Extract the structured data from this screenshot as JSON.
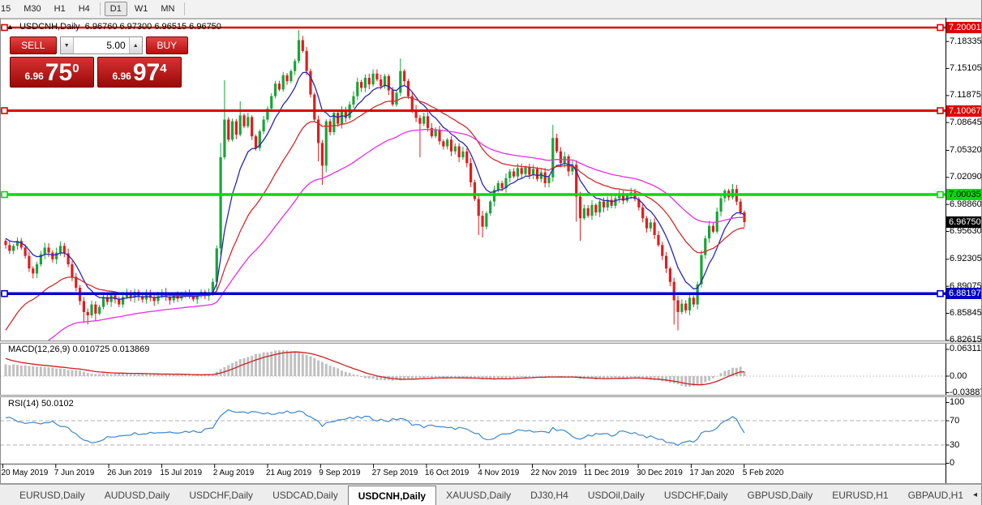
{
  "toolbar": {
    "timeframes": [
      "15",
      "M30",
      "H1",
      "H4",
      "D1",
      "W1",
      "MN"
    ],
    "active": "D1"
  },
  "chart": {
    "title": {
      "symbol": "USDCNH,Daily",
      "open": "6.96760",
      "high": "6.97300",
      "low": "6.96515",
      "close": "6.96750"
    },
    "trade": {
      "sell_label": "SELL",
      "buy_label": "BUY",
      "volume": "5.00",
      "sell_price_prefix": "6.96",
      "sell_price_main": "75",
      "sell_price_sup": "0",
      "buy_price_prefix": "6.96",
      "buy_price_main": "97",
      "buy_price_sup": "4"
    }
  },
  "chart_data": {
    "type": "candlestick",
    "symbol": "USDCNH",
    "timeframe": "Daily",
    "x_axis": {
      "labels": [
        "20 May 2019",
        "7 Jun 2019",
        "26 Jun 2019",
        "15 Jul 2019",
        "2 Aug 2019",
        "21 Aug 2019",
        "9 Sep 2019",
        "27 Sep 2019",
        "16 Oct 2019",
        "4 Nov 2019",
        "22 Nov 2019",
        "11 Dec 2019",
        "30 Dec 2019",
        "17 Jan 2020",
        "5 Feb 2020"
      ]
    },
    "y_axis": {
      "ticks": [
        "7.18335",
        "7.15105",
        "7.11875",
        "7.08645",
        "7.05320",
        "7.02090",
        "6.98860",
        "6.95630",
        "6.92305",
        "6.89075",
        "6.85845",
        "6.82615"
      ],
      "tick_values": [
        7.18335,
        7.15105,
        7.11875,
        7.08645,
        7.0532,
        7.0209,
        6.9886,
        6.9563,
        6.92305,
        6.89075,
        6.85845,
        6.82615
      ],
      "tags": [
        {
          "value": "7.20001",
          "price": 7.20001,
          "bg": "#e00000",
          "fg": "#ffffff"
        },
        {
          "value": "7.10067",
          "price": 7.10067,
          "bg": "#e00000",
          "fg": "#ffffff"
        },
        {
          "value": "7.00035",
          "price": 7.00035,
          "bg": "#00dd00",
          "fg": "#000000"
        },
        {
          "value": "6.96750",
          "price": 6.9675,
          "bg": "#000000",
          "fg": "#ffffff"
        },
        {
          "value": "6.88197",
          "price": 6.88197,
          "bg": "#0000cc",
          "fg": "#ffffff"
        }
      ]
    },
    "candles": {
      "first_open": 6.945,
      "closes": [
        6.94,
        6.933,
        6.939,
        6.945,
        6.937,
        6.927,
        6.912,
        6.906,
        6.917,
        6.929,
        6.937,
        6.931,
        6.923,
        6.931,
        6.939,
        6.93,
        6.917,
        6.902,
        6.889,
        6.873,
        6.86,
        6.856,
        6.869,
        6.858,
        6.866,
        6.878,
        6.872,
        6.88,
        6.875,
        6.869,
        6.878,
        6.883,
        6.877,
        6.884,
        6.879,
        6.875,
        6.881,
        6.877,
        6.873,
        6.879,
        6.883,
        6.878,
        6.874,
        6.88,
        6.876,
        6.879,
        6.883,
        6.879,
        6.875,
        6.881,
        6.884,
        6.879,
        6.883,
        6.896,
        6.936,
        7.045,
        7.09,
        7.066,
        7.088,
        7.072,
        7.095,
        7.082,
        7.093,
        7.07,
        7.056,
        7.076,
        7.09,
        7.103,
        7.118,
        7.133,
        7.126,
        7.143,
        7.136,
        7.148,
        7.16,
        7.185,
        7.172,
        7.148,
        7.12,
        7.09,
        7.062,
        7.035,
        7.088,
        7.075,
        7.098,
        7.085,
        7.102,
        7.092,
        7.108,
        7.118,
        7.135,
        7.128,
        7.14,
        7.132,
        7.145,
        7.138,
        7.13,
        7.142,
        7.125,
        7.108,
        7.122,
        7.148,
        7.136,
        7.118,
        7.102,
        7.092,
        7.085,
        7.094,
        7.08,
        7.07,
        7.078,
        7.064,
        7.058,
        7.066,
        7.052,
        7.058,
        7.045,
        7.052,
        7.038,
        7.015,
        6.995,
        6.975,
        6.962,
        6.978,
        6.992,
        7.006,
        7.014,
        7.008,
        7.02,
        7.028,
        7.022,
        7.032,
        7.025,
        7.033,
        7.024,
        7.031,
        7.019,
        7.027,
        7.014,
        7.021,
        7.068,
        7.052,
        7.038,
        7.046,
        7.028,
        7.036,
        6.998,
        6.972,
        6.984,
        6.975,
        6.988,
        6.979,
        6.992,
        6.985,
        6.994,
        6.987,
        6.996,
        7.002,
        6.993,
        6.999,
        7.003,
        6.995,
        6.985,
        6.972,
        6.96,
        6.967,
        6.952,
        6.94,
        6.927,
        6.912,
        6.896,
        6.874,
        6.86,
        6.87,
        6.862,
        6.877,
        6.869,
        6.893,
        6.928,
        6.948,
        6.963,
        6.956,
        6.98,
        6.996,
        7.005,
        6.997,
        7.007,
        6.992,
        6.979,
        6.9675
      ],
      "wick_overrides": {
        "20": {
          "l": 6.847
        },
        "21": {
          "l": 6.845
        },
        "23": {
          "l": 6.849
        },
        "54": {
          "l": 6.884
        },
        "55": {
          "h": 7.062,
          "l": 6.928
        },
        "56": {
          "h": 7.137
        },
        "60": {
          "h": 7.112
        },
        "75": {
          "h": 7.197
        },
        "76": {
          "h": 7.19
        },
        "80": {
          "l": 7.04
        },
        "81": {
          "l": 7.012
        },
        "82": {
          "l": 7.027
        },
        "101": {
          "h": 7.163
        },
        "106": {
          "l": 7.045
        },
        "121": {
          "l": 6.952
        },
        "122": {
          "l": 6.949
        },
        "140": {
          "h": 7.0836
        },
        "146": {
          "l": 6.968
        },
        "147": {
          "l": 6.945
        },
        "171": {
          "l": 6.845
        },
        "172": {
          "l": 6.838
        },
        "186": {
          "h": 7.013
        },
        "189": {
          "l": 6.9615
        }
      }
    },
    "overlays": {
      "hlines": [
        {
          "price": 7.20001,
          "color": "#e00000",
          "width": 2.5
        },
        {
          "price": 7.10067,
          "color": "#e00000",
          "width": 3
        },
        {
          "price": 7.00035,
          "color": "#00dd00",
          "width": 3.5
        },
        {
          "price": 6.88197,
          "color": "#0000cc",
          "width": 3.5
        }
      ],
      "emas": [
        {
          "period": 9,
          "color": "#2727b5",
          "seed": 6.95
        },
        {
          "period": 26,
          "color": "#d42a2a",
          "seed": 6.83
        },
        {
          "period": 55,
          "color": "#e62ee6",
          "seed": 6.77
        }
      ]
    },
    "macd": {
      "label": "MACD(12,26,9)",
      "value": "0.010725",
      "signal_value": "0.013869",
      "axis": [
        "0.063113",
        "0.00",
        "-0.038872"
      ],
      "axis_values": [
        0.063113,
        0.0,
        -0.038872
      ],
      "bar_color": "#c0c0c0",
      "line_color": "#cc2020",
      "signal_period": 9,
      "signal_seed": 0.045,
      "bars_anchors": [
        [
          0,
          0.027
        ],
        [
          6,
          0.024
        ],
        [
          12,
          0.02
        ],
        [
          18,
          0.014
        ],
        [
          22,
          0.006
        ],
        [
          26,
          0.005
        ],
        [
          32,
          0.006
        ],
        [
          38,
          0.005
        ],
        [
          44,
          0.004
        ],
        [
          50,
          0.003
        ],
        [
          53,
          0.006
        ],
        [
          56,
          0.022
        ],
        [
          60,
          0.04
        ],
        [
          64,
          0.052
        ],
        [
          68,
          0.059
        ],
        [
          71,
          0.062
        ],
        [
          74,
          0.059
        ],
        [
          77,
          0.05
        ],
        [
          80,
          0.038
        ],
        [
          83,
          0.024
        ],
        [
          86,
          0.014
        ],
        [
          89,
          0.005
        ],
        [
          92,
          -0.004
        ],
        [
          95,
          -0.009
        ],
        [
          98,
          -0.011
        ],
        [
          101,
          -0.009
        ],
        [
          104,
          -0.006
        ],
        [
          108,
          -0.004
        ],
        [
          112,
          -0.003
        ],
        [
          116,
          -0.004
        ],
        [
          120,
          -0.006
        ],
        [
          124,
          -0.008
        ],
        [
          128,
          -0.006
        ],
        [
          132,
          -0.003
        ],
        [
          136,
          -0.002
        ],
        [
          140,
          -0.001
        ],
        [
          144,
          -0.003
        ],
        [
          148,
          -0.006
        ],
        [
          152,
          -0.007
        ],
        [
          156,
          -0.005
        ],
        [
          160,
          -0.004
        ],
        [
          164,
          -0.007
        ],
        [
          168,
          -0.012
        ],
        [
          172,
          -0.02
        ],
        [
          175,
          -0.026
        ],
        [
          178,
          -0.02
        ],
        [
          180,
          -0.01
        ],
        [
          182,
          0.0
        ],
        [
          184,
          0.012
        ],
        [
          186,
          0.019
        ],
        [
          188,
          0.022
        ],
        [
          189,
          0.0107
        ]
      ]
    },
    "rsi": {
      "label": "RSI(14)",
      "value": "50.0102",
      "axis": [
        "100",
        "70",
        "30",
        "0"
      ],
      "axis_values": [
        100,
        70,
        30,
        0
      ],
      "levels": [
        70,
        30
      ],
      "color": "#3d87c9",
      "anchors": [
        [
          0,
          75
        ],
        [
          4,
          68
        ],
        [
          8,
          64
        ],
        [
          12,
          67
        ],
        [
          16,
          57
        ],
        [
          20,
          40
        ],
        [
          23,
          33
        ],
        [
          26,
          42
        ],
        [
          30,
          47
        ],
        [
          35,
          50
        ],
        [
          40,
          51
        ],
        [
          45,
          52
        ],
        [
          50,
          53
        ],
        [
          53,
          60
        ],
        [
          55,
          80
        ],
        [
          57,
          88
        ],
        [
          60,
          82
        ],
        [
          63,
          85
        ],
        [
          66,
          80
        ],
        [
          69,
          83
        ],
        [
          72,
          84
        ],
        [
          75,
          86
        ],
        [
          78,
          76
        ],
        [
          81,
          62
        ],
        [
          83,
          70
        ],
        [
          86,
          72
        ],
        [
          89,
          74
        ],
        [
          92,
          76
        ],
        [
          95,
          72
        ],
        [
          98,
          70
        ],
        [
          101,
          74
        ],
        [
          104,
          65
        ],
        [
          107,
          60
        ],
        [
          110,
          62
        ],
        [
          113,
          57
        ],
        [
          116,
          58
        ],
        [
          119,
          52
        ],
        [
          122,
          44
        ],
        [
          124,
          38
        ],
        [
          127,
          46
        ],
        [
          130,
          52
        ],
        [
          133,
          55
        ],
        [
          136,
          52
        ],
        [
          139,
          50
        ],
        [
          140,
          58
        ],
        [
          143,
          52
        ],
        [
          146,
          40
        ],
        [
          149,
          44
        ],
        [
          152,
          48
        ],
        [
          155,
          47
        ],
        [
          158,
          52
        ],
        [
          161,
          50
        ],
        [
          164,
          44
        ],
        [
          167,
          40
        ],
        [
          170,
          34
        ],
        [
          172,
          31
        ],
        [
          174,
          36
        ],
        [
          176,
          34
        ],
        [
          178,
          48
        ],
        [
          181,
          55
        ],
        [
          183,
          64
        ],
        [
          185,
          72
        ],
        [
          186,
          78
        ],
        [
          187,
          70
        ],
        [
          188,
          62
        ],
        [
          189,
          50.01
        ]
      ]
    },
    "colors": {
      "up": "#18a437",
      "down": "#e31b1c"
    }
  },
  "tabs": {
    "items": [
      "EURUSD,Daily",
      "AUDUSD,Daily",
      "USDCHF,Daily",
      "USDCAD,Daily",
      "USDCNH,Daily",
      "XAUUSD,Daily",
      "DJ30,H4",
      "USDOil,Daily",
      "USDCHF,Daily",
      "GBPUSD,Daily",
      "EURUSD,H1",
      "GBPAUD,H1"
    ],
    "active_index": 4,
    "left_arrow": "◂",
    "right_arrow": "▸"
  }
}
